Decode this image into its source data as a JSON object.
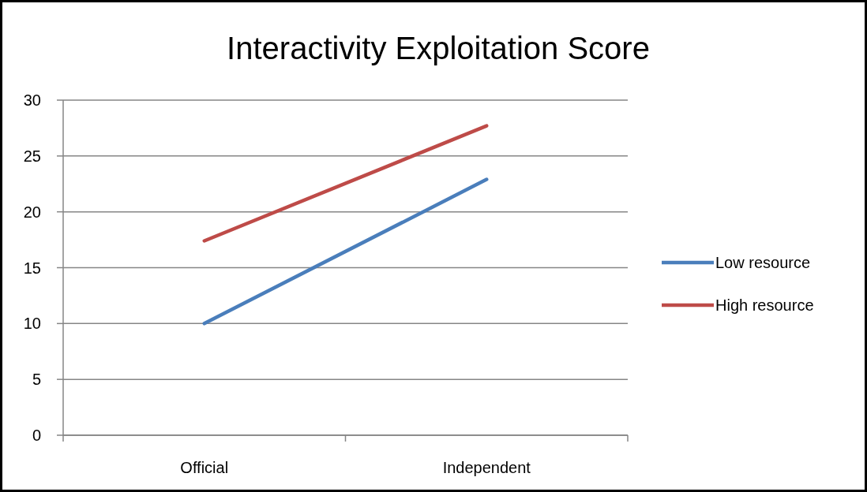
{
  "chart_data": {
    "type": "line",
    "title": "Interactivity Exploitation Score",
    "categories": [
      "Official",
      "Independent"
    ],
    "series": [
      {
        "name": "Low resource",
        "color": "#4a7ebb",
        "values": [
          10,
          22.9
        ]
      },
      {
        "name": "High resource",
        "color": "#be4b48",
        "values": [
          17.4,
          27.7
        ]
      }
    ],
    "ylim": [
      0,
      30
    ],
    "yticks": [
      0,
      5,
      10,
      15,
      20,
      25,
      30
    ],
    "grid": "y",
    "legend": "right",
    "marker": "none",
    "line_style": "solid"
  }
}
